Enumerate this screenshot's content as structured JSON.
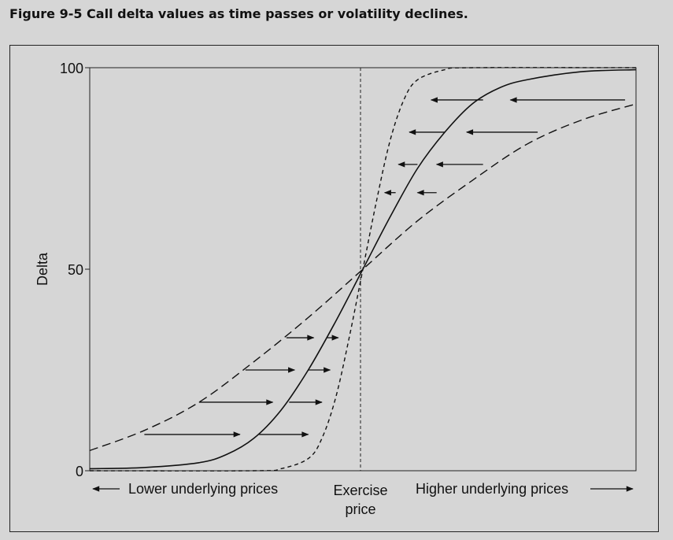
{
  "figure": {
    "caption": "Figure 9-5  Call delta values as time passes or volatility declines."
  },
  "chart_data": {
    "type": "line",
    "ylabel": "Delta",
    "ylim": [
      0,
      100
    ],
    "yticks": [
      "0",
      "50",
      "100"
    ],
    "x_annotations": {
      "lower": "Lower underlying prices",
      "exercise_line1": "Exercise",
      "exercise_line2": "price",
      "higher": "Higher underlying prices"
    },
    "x_domain": [
      -1,
      1
    ],
    "exercise_x": 0,
    "series": [
      {
        "style": "solid",
        "x": [
          -1,
          -0.8,
          -0.6,
          -0.5,
          -0.4,
          -0.3,
          -0.2,
          -0.1,
          0,
          0.1,
          0.2,
          0.3,
          0.4,
          0.5,
          0.6,
          0.8,
          1
        ],
        "values": [
          0.5,
          0.8,
          2,
          4,
          8,
          15,
          25,
          37,
          50,
          63,
          75,
          84,
          91,
          95,
          97,
          99,
          99.5
        ]
      },
      {
        "style": "short-dash",
        "x": [
          -1,
          -0.4,
          -0.3,
          -0.2,
          -0.15,
          -0.1,
          -0.05,
          0,
          0.05,
          0.1,
          0.15,
          0.2,
          0.3,
          0.4,
          1
        ],
        "values": [
          0,
          0,
          0.5,
          3,
          8,
          18,
          33,
          50,
          67,
          82,
          92,
          97,
          99.5,
          100,
          100
        ]
      },
      {
        "style": "long-dash",
        "x": [
          -1,
          -0.8,
          -0.6,
          -0.4,
          -0.2,
          0,
          0.2,
          0.4,
          0.6,
          0.8,
          1
        ],
        "values": [
          5,
          10,
          17,
          27,
          38,
          50,
          62,
          72,
          81,
          87,
          91
        ]
      }
    ],
    "arrows": [
      {
        "x1": -0.8,
        "x2": -0.45,
        "y": 9,
        "dir": "right"
      },
      {
        "x1": -0.38,
        "x2": -0.2,
        "y": 9,
        "dir": "right"
      },
      {
        "x1": -0.6,
        "x2": -0.33,
        "y": 17,
        "dir": "right"
      },
      {
        "x1": -0.27,
        "x2": -0.15,
        "y": 17,
        "dir": "right"
      },
      {
        "x1": -0.43,
        "x2": -0.25,
        "y": 25,
        "dir": "right"
      },
      {
        "x1": -0.2,
        "x2": -0.12,
        "y": 25,
        "dir": "right"
      },
      {
        "x1": -0.28,
        "x2": -0.18,
        "y": 33,
        "dir": "right"
      },
      {
        "x1": -0.13,
        "x2": -0.09,
        "y": 33,
        "dir": "right"
      },
      {
        "x1": 0.27,
        "x2": 0.2,
        "y": 69,
        "dir": "left"
      },
      {
        "x1": 0.12,
        "x2": 0.08,
        "y": 69,
        "dir": "left"
      },
      {
        "x1": 0.44,
        "x2": 0.27,
        "y": 76,
        "dir": "left"
      },
      {
        "x1": 0.2,
        "x2": 0.13,
        "y": 76,
        "dir": "left"
      },
      {
        "x1": 0.64,
        "x2": 0.38,
        "y": 84,
        "dir": "left"
      },
      {
        "x1": 0.3,
        "x2": 0.17,
        "y": 84,
        "dir": "left"
      },
      {
        "x1": 0.96,
        "x2": 0.54,
        "y": 92,
        "dir": "left"
      },
      {
        "x1": 0.44,
        "x2": 0.25,
        "y": 92,
        "dir": "left"
      }
    ]
  }
}
